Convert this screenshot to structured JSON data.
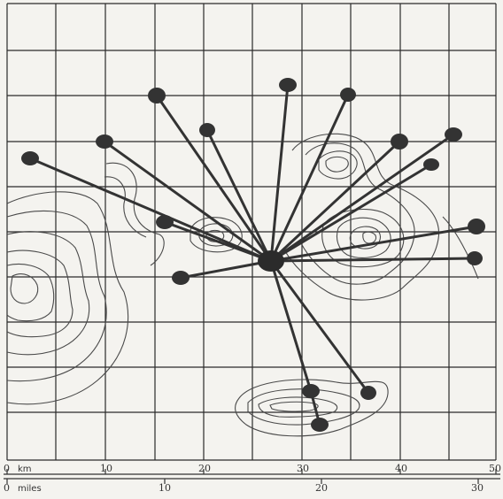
{
  "scale": {
    "km_unit": "km",
    "mile_unit": "miles",
    "km_ticks": [
      "0",
      "10",
      "20",
      "30",
      "40",
      "50"
    ],
    "mile_ticks": [
      "0",
      "10",
      "20",
      "30"
    ]
  },
  "colors": {
    "ink": "#333333",
    "contour": "#4a4a4a",
    "paper": "#f4f3ef"
  }
}
